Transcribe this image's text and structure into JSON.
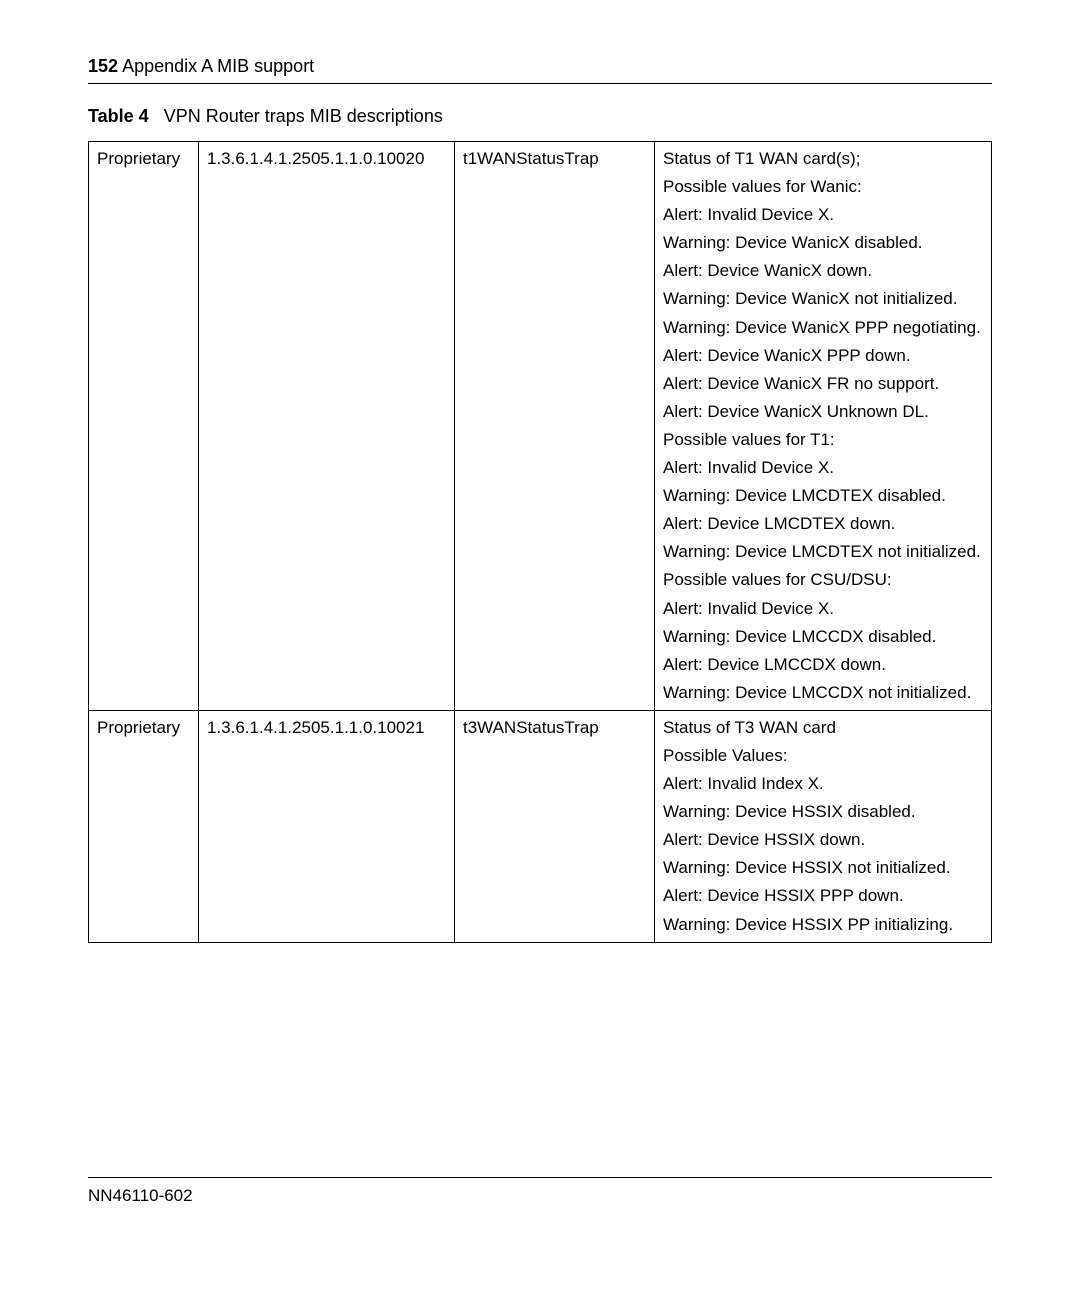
{
  "page": {
    "number": "152",
    "section": "Appendix A  MIB support"
  },
  "table": {
    "label": "Table 4",
    "title": "VPN Router traps MIB descriptions",
    "rows": [
      {
        "type": "Proprietary",
        "oid": "1.3.6.1.4.1.2505.1.1.0.10020",
        "name": "t1WANStatusTrap",
        "desc": [
          "Status of T1 WAN card(s);",
          "Possible values for Wanic:",
          "Alert: Invalid Device X.",
          "Warning: Device WanicX disabled.",
          "Alert: Device WanicX down.",
          "Warning: Device WanicX not initialized.",
          "Warning: Device WanicX PPP negotiating.",
          "Alert: Device WanicX PPP down.",
          "Alert: Device WanicX FR no support.",
          "Alert: Device WanicX Unknown DL.",
          "Possible values for T1:",
          "Alert: Invalid Device X.",
          "Warning: Device LMCDTEX disabled.",
          "Alert: Device LMCDTEX down.",
          "Warning: Device LMCDTEX not initialized.",
          "Possible values for CSU/DSU:",
          "Alert: Invalid Device X.",
          "Warning: Device LMCCDX disabled.",
          "Alert: Device LMCCDX down.",
          "Warning: Device LMCCDX not initialized."
        ]
      },
      {
        "type": "Proprietary",
        "oid": "1.3.6.1.4.1.2505.1.1.0.10021",
        "name": "t3WANStatusTrap",
        "desc": [
          "Status of T3 WAN card",
          "Possible Values:",
          "Alert: Invalid Index X.",
          "Warning: Device HSSIX disabled.",
          "Alert: Device HSSIX down.",
          "Warning: Device HSSIX not initialized.",
          "Alert: Device HSSIX PPP down.",
          "Warning: Device HSSIX PP initializing."
        ]
      }
    ]
  },
  "footer": {
    "docnum": "NN46110-602"
  }
}
